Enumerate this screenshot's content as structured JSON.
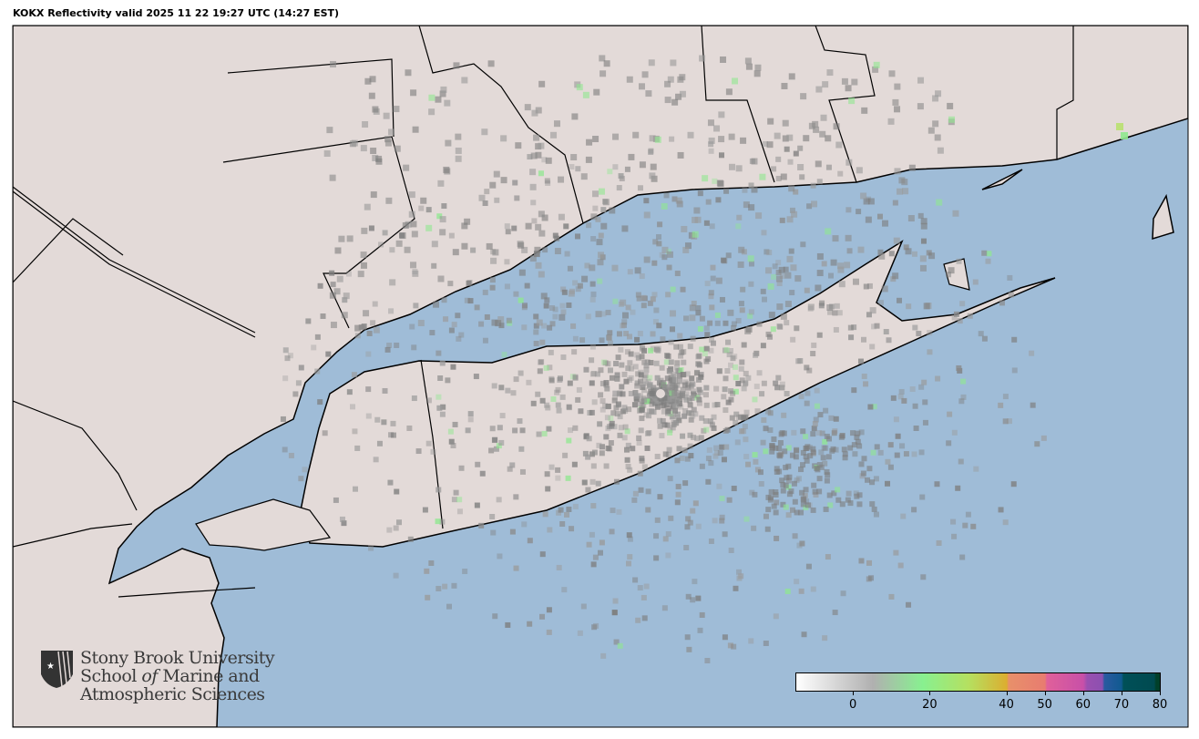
{
  "title": "KOKX Reflectivity valid 2025 11 22 19:27 UTC (14:27 EST)",
  "map": {
    "water_color": "#9fbcd7",
    "land_color": "#e3dad8",
    "radar_site": "KOKX",
    "echo_colors": [
      "#8a8a8a",
      "#7d7d7d",
      "#9a9a9a",
      "#8fe88f",
      "#b8e070"
    ]
  },
  "logo": {
    "line1": "Stony Brook University",
    "line2_pre": "School ",
    "line2_it": "of",
    "line2_post": " Marine and",
    "line3": "Atmospheric Sciences"
  },
  "colorbar": {
    "units_range": [
      -15,
      80
    ],
    "ticks": [
      {
        "value": 0,
        "label": "0"
      },
      {
        "value": 20,
        "label": "20"
      },
      {
        "value": 40,
        "label": "40"
      },
      {
        "value": 50,
        "label": "50"
      },
      {
        "value": 60,
        "label": "60"
      },
      {
        "value": 70,
        "label": "70"
      },
      {
        "value": 80,
        "label": "80"
      }
    ],
    "stops": [
      {
        "value": -15,
        "color": "#ffffff"
      },
      {
        "value": 5,
        "color": "#b0b0b0"
      },
      {
        "value": 18,
        "color": "#88f090"
      },
      {
        "value": 30,
        "color": "#b5e060"
      },
      {
        "value": 40,
        "color": "#dcae30"
      },
      {
        "value": 40.5,
        "color": "#e8906a"
      },
      {
        "value": 50,
        "color": "#e87c70"
      },
      {
        "value": 50.5,
        "color": "#e0609a"
      },
      {
        "value": 60,
        "color": "#c850a8"
      },
      {
        "value": 61,
        "color": "#9a50b0"
      },
      {
        "value": 65,
        "color": "#8c50b0"
      },
      {
        "value": 65.5,
        "color": "#2a5aa0"
      },
      {
        "value": 70,
        "color": "#105a90"
      },
      {
        "value": 70.5,
        "color": "#005058"
      },
      {
        "value": 78.5,
        "color": "#004a50"
      },
      {
        "value": 79,
        "color": "#00402a"
      },
      {
        "value": 80,
        "color": "#00402a"
      }
    ]
  }
}
